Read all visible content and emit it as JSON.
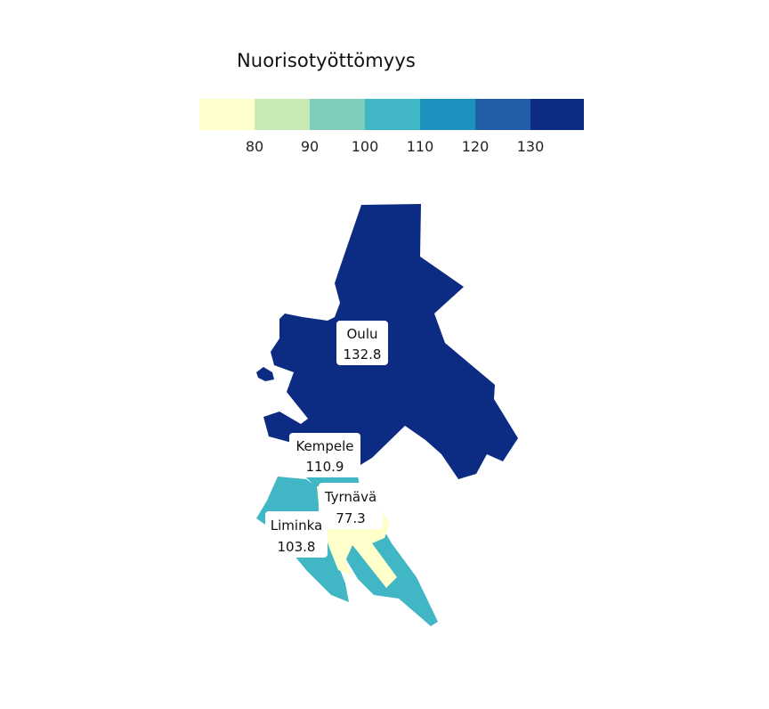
{
  "legend": {
    "title": "Nuorisotyöttömyys",
    "ticks": [
      "80",
      "90",
      "100",
      "110",
      "120",
      "130"
    ],
    "swatches": [
      "#ffffcc",
      "#c7e9b4",
      "#7fcdbb",
      "#41b6c4",
      "#1d91c0",
      "#225ea8",
      "#0c2c84"
    ]
  },
  "regions": [
    {
      "name": "Oulu",
      "value": "132.8",
      "color": "#0c2c84"
    },
    {
      "name": "Kempele",
      "value": "110.9",
      "color": "#41b6c4"
    },
    {
      "name": "Tyrnävä",
      "value": "77.3",
      "color": "#ffffcc"
    },
    {
      "name": "Liminka",
      "value": "103.8",
      "color": "#41b6c4"
    }
  ]
}
